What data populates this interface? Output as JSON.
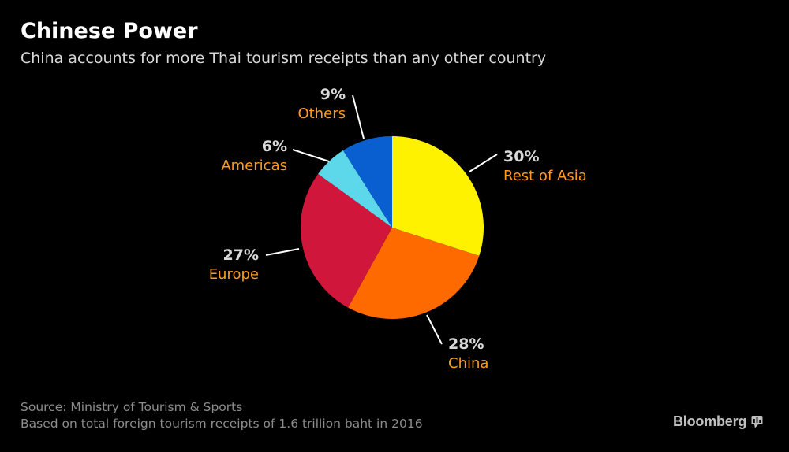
{
  "header": {
    "title": "Chinese Power",
    "subtitle": "China accounts for more Thai tourism receipts than any other country"
  },
  "chart_data": {
    "type": "pie",
    "title": "Chinese Power",
    "subtitle": "China accounts for more Thai tourism receipts than any other country",
    "slices": [
      {
        "label": "Rest of Asia",
        "value": 30,
        "value_label": "30%",
        "color": "#fff200"
      },
      {
        "label": "China",
        "value": 28,
        "value_label": "28%",
        "color": "#ff6a00"
      },
      {
        "label": "Europe",
        "value": 27,
        "value_label": "27%",
        "color": "#d0163a"
      },
      {
        "label": "Americas",
        "value": 6,
        "value_label": "6%",
        "color": "#5dd8ea"
      },
      {
        "label": "Others",
        "value": 9,
        "value_label": "9%",
        "color": "#0a5fd0"
      }
    ],
    "start_angle_deg": 0,
    "direction": "clockwise",
    "legend": "none",
    "value_label_color": "#d9d9d9",
    "category_label_color": "#ff9a1f"
  },
  "footer": {
    "source": "Source: Ministry of Tourism & Sports",
    "note": "Based on total foreign tourism receipts of 1.6 trillion baht in 2016",
    "brand": "Bloomberg",
    "brand_icon": "bloomberg-terminal-icon"
  }
}
